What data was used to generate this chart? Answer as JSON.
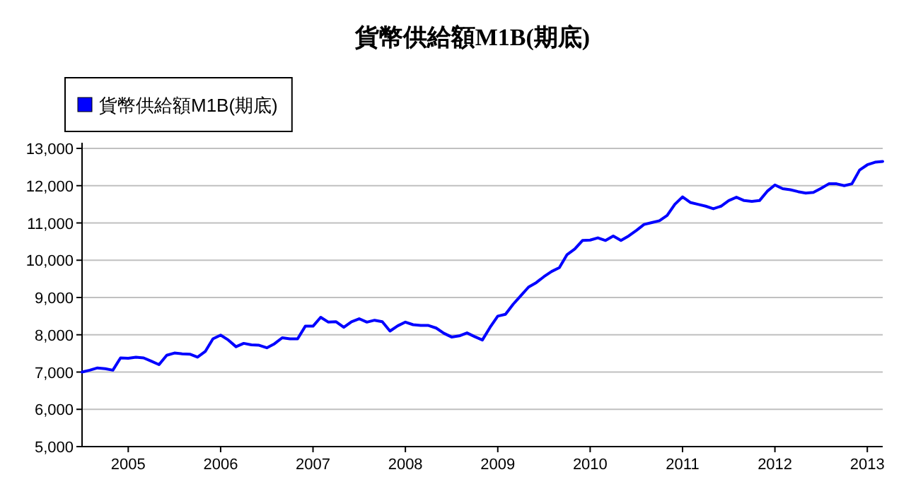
{
  "chart_data": {
    "type": "line",
    "title": "貨幣供給額M1B(期底)",
    "x": [
      "2004-07",
      "2004-08",
      "2004-09",
      "2004-10",
      "2004-11",
      "2004-12",
      "2005-01",
      "2005-02",
      "2005-03",
      "2005-04",
      "2005-05",
      "2005-06",
      "2005-07",
      "2005-08",
      "2005-09",
      "2005-10",
      "2005-11",
      "2005-12",
      "2006-01",
      "2006-02",
      "2006-03",
      "2006-04",
      "2006-05",
      "2006-06",
      "2006-07",
      "2006-08",
      "2006-09",
      "2006-10",
      "2006-11",
      "2006-12",
      "2007-01",
      "2007-02",
      "2007-03",
      "2007-04",
      "2007-05",
      "2007-06",
      "2007-07",
      "2007-08",
      "2007-09",
      "2007-10",
      "2007-11",
      "2007-12",
      "2008-01",
      "2008-02",
      "2008-03",
      "2008-04",
      "2008-05",
      "2008-06",
      "2008-07",
      "2008-08",
      "2008-09",
      "2008-10",
      "2008-11",
      "2008-12",
      "2009-01",
      "2009-02",
      "2009-03",
      "2009-04",
      "2009-05",
      "2009-06",
      "2009-07",
      "2009-08",
      "2009-09",
      "2009-10",
      "2009-11",
      "2009-12",
      "2010-01",
      "2010-02",
      "2010-03",
      "2010-04",
      "2010-05",
      "2010-06",
      "2010-07",
      "2010-08",
      "2010-09",
      "2010-10",
      "2010-11",
      "2010-12",
      "2011-01",
      "2011-02",
      "2011-03",
      "2011-04",
      "2011-05",
      "2011-06",
      "2011-07",
      "2011-08",
      "2011-09",
      "2011-10",
      "2011-11",
      "2011-12",
      "2012-01",
      "2012-02",
      "2012-03",
      "2012-04",
      "2012-05",
      "2012-06",
      "2012-07",
      "2012-08",
      "2012-09",
      "2012-10",
      "2012-11",
      "2012-12",
      "2013-01",
      "2013-02",
      "2013-03"
    ],
    "series": [
      {
        "name": "貨幣供給額M1B(期底)",
        "color": "#0000ff",
        "values": [
          7000,
          7050,
          7110,
          7090,
          7050,
          7380,
          7370,
          7400,
          7380,
          7290,
          7200,
          7450,
          7510,
          7490,
          7480,
          7400,
          7550,
          7890,
          7990,
          7860,
          7680,
          7770,
          7730,
          7720,
          7650,
          7760,
          7920,
          7890,
          7890,
          8230,
          8230,
          8470,
          8340,
          8350,
          8200,
          8350,
          8430,
          8340,
          8390,
          8350,
          8100,
          8240,
          8340,
          8270,
          8250,
          8250,
          8180,
          8040,
          7940,
          7970,
          8050,
          7950,
          7860,
          8200,
          8500,
          8550,
          8820,
          9050,
          9280,
          9400,
          9560,
          9700,
          9800,
          10150,
          10300,
          10530,
          10540,
          10600,
          10530,
          10650,
          10530,
          10650,
          10800,
          10960,
          11010,
          11060,
          11200,
          11500,
          11700,
          11550,
          11500,
          11450,
          11380,
          11450,
          11600,
          11690,
          11600,
          11580,
          11600,
          11850,
          12020,
          11920,
          11890,
          11840,
          11800,
          11820,
          11930,
          12050,
          12050,
          12000,
          12050,
          12420,
          12560,
          12630,
          12650
        ]
      }
    ],
    "xlim": [
      "2004-07",
      "2013-03"
    ],
    "xticks": [
      "2005",
      "2006",
      "2007",
      "2008",
      "2009",
      "2010",
      "2011",
      "2012",
      "2013"
    ],
    "ylim": [
      5000,
      13000
    ],
    "yticks": [
      {
        "value": 5000,
        "label": "5,000"
      },
      {
        "value": 6000,
        "label": "6,000"
      },
      {
        "value": 7000,
        "label": "7,000"
      },
      {
        "value": 8000,
        "label": "8,000"
      },
      {
        "value": 9000,
        "label": "9,000"
      },
      {
        "value": 10000,
        "label": "10,000"
      },
      {
        "value": 11000,
        "label": "11,000"
      },
      {
        "value": 12000,
        "label": "12,000"
      },
      {
        "value": 13000,
        "label": "13,000"
      }
    ],
    "grid": "y",
    "legend": "top left",
    "marker": "none",
    "line_style": "solid"
  }
}
